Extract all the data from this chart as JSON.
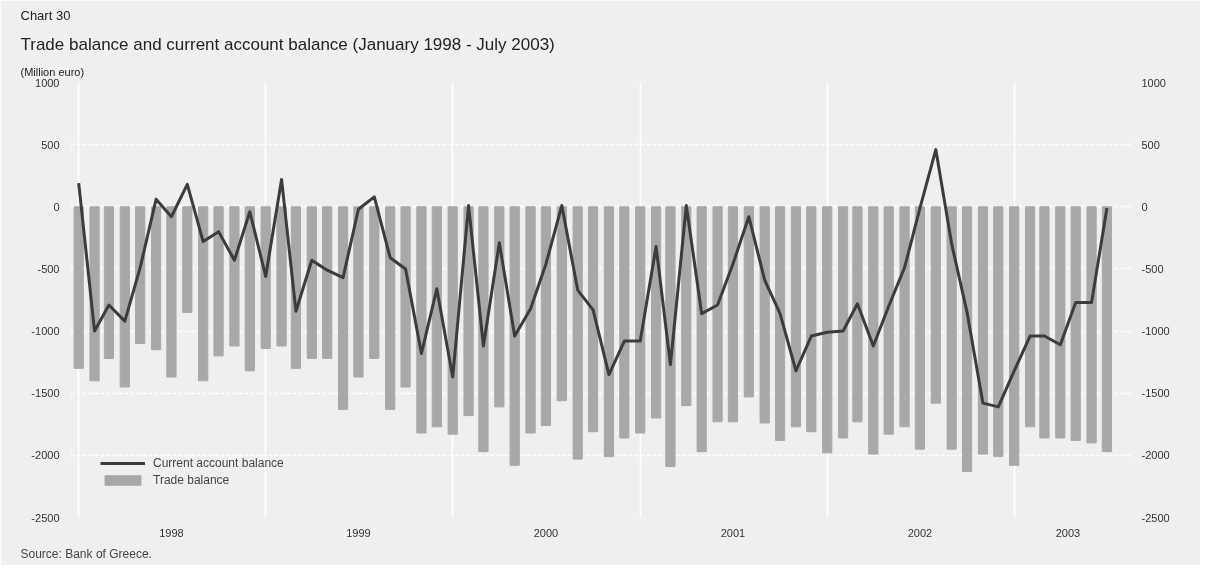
{
  "chart_data": {
    "type": "bar",
    "title": "Trade balance and current account balance (January 1998 - July 2003)",
    "subtitle": "(Million euro)",
    "annotations": [
      "Chart 30",
      "Source: Bank of Greece."
    ],
    "x": [
      "1998-01",
      "1998-02",
      "1998-03",
      "1998-04",
      "1998-05",
      "1998-06",
      "1998-07",
      "1998-08",
      "1998-09",
      "1998-10",
      "1998-11",
      "1998-12",
      "1999-01",
      "1999-02",
      "1999-03",
      "1999-04",
      "1999-05",
      "1999-06",
      "1999-07",
      "1999-08",
      "1999-09",
      "1999-10",
      "1999-11",
      "1999-12",
      "2000-01",
      "2000-02",
      "2000-03",
      "2000-04",
      "2000-05",
      "2000-06",
      "2000-07",
      "2000-08",
      "2000-09",
      "2000-10",
      "2000-11",
      "2000-12",
      "2001-01",
      "2001-02",
      "2001-03",
      "2001-04",
      "2001-05",
      "2001-06",
      "2001-07",
      "2001-08",
      "2001-09",
      "2001-10",
      "2001-11",
      "2001-12",
      "2002-01",
      "2002-02",
      "2002-03",
      "2002-04",
      "2002-05",
      "2002-06",
      "2002-07",
      "2002-08",
      "2002-09",
      "2002-10",
      "2002-11",
      "2002-12",
      "2003-01",
      "2003-02",
      "2003-03",
      "2003-04",
      "2003-05",
      "2003-06",
      "2003-07"
    ],
    "series": [
      {
        "name": "Current account balance",
        "type": "line",
        "color": "#3c3c3c",
        "values": [
          190,
          -1000,
          -790,
          -920,
          -490,
          60,
          -80,
          180,
          -280,
          -200,
          -430,
          -40,
          -560,
          220,
          -840,
          -430,
          -510,
          -570,
          -20,
          80,
          -410,
          -500,
          -1180,
          -660,
          -1370,
          10,
          -1120,
          -290,
          -1040,
          -820,
          -460,
          10,
          -670,
          -830,
          -1350,
          -1080,
          -1080,
          -320,
          -1270,
          10,
          -860,
          -790,
          -460,
          -80,
          -590,
          -860,
          -1320,
          -1040,
          -1010,
          -1000,
          -780,
          -1120,
          -800,
          -490,
          -10,
          460,
          -300,
          -850,
          -1580,
          -1610,
          -1320,
          -1040,
          -1040,
          -1110,
          -770,
          -770,
          -10
        ]
      },
      {
        "name": "Trade balance",
        "color": "#a8a8a8",
        "values": [
          -1300,
          -1400,
          -1220,
          -1450,
          -1100,
          -1150,
          -1370,
          -850,
          -1400,
          -1200,
          -1120,
          -1320,
          -1140,
          -1120,
          -1300,
          -1220,
          -1220,
          -1630,
          -1370,
          -1220,
          -1630,
          -1450,
          -1820,
          -1770,
          -1830,
          -1680,
          -1970,
          -1610,
          -2080,
          -1820,
          -1760,
          -1560,
          -2030,
          -1810,
          -2010,
          -1860,
          -1820,
          -1700,
          -2090,
          -1600,
          -1970,
          -1730,
          -1730,
          -1530,
          -1740,
          -1880,
          -1770,
          -1810,
          -1980,
          -1860,
          -1730,
          -1990,
          -1830,
          -1770,
          -1950,
          -1580,
          -1950,
          -2130,
          -1990,
          -2010,
          -2080,
          -1770,
          -1860,
          -1860,
          -1880,
          -1900,
          -1970
        ]
      }
    ],
    "xlim": [
      "1997-12-16",
      "2003-08-16"
    ],
    "xticks": [
      {
        "value": "1998-01-01",
        "label": null
      },
      {
        "value": "1998-07-01",
        "label": "1998"
      },
      {
        "value": "1999-01-01",
        "label": null
      },
      {
        "value": "1999-07-01",
        "label": "1999"
      },
      {
        "value": "2000-01-01",
        "label": null
      },
      {
        "value": "2000-07-01",
        "label": "2000"
      },
      {
        "value": "2001-01-01",
        "label": null
      },
      {
        "value": "2001-07-01",
        "label": "2001"
      },
      {
        "value": "2002-01-01",
        "label": null
      },
      {
        "value": "2002-07-01",
        "label": "2002"
      },
      {
        "value": "2003-01-01",
        "label": null
      },
      {
        "value": "2003-04-16",
        "label": "2003"
      },
      {
        "value": "2003-08-16",
        "label": null
      }
    ],
    "ylim": [
      -2500,
      1000
    ],
    "yticks": [
      -2500,
      -2000,
      -1500,
      -1000,
      -500,
      0,
      500,
      1000
    ],
    "y2lim": [
      -2500,
      1000
    ],
    "y2ticks": [
      -2500,
      -2000,
      -1500,
      -1000,
      -500,
      0,
      500,
      1000
    ],
    "grid": true,
    "legend": "bottom left"
  }
}
